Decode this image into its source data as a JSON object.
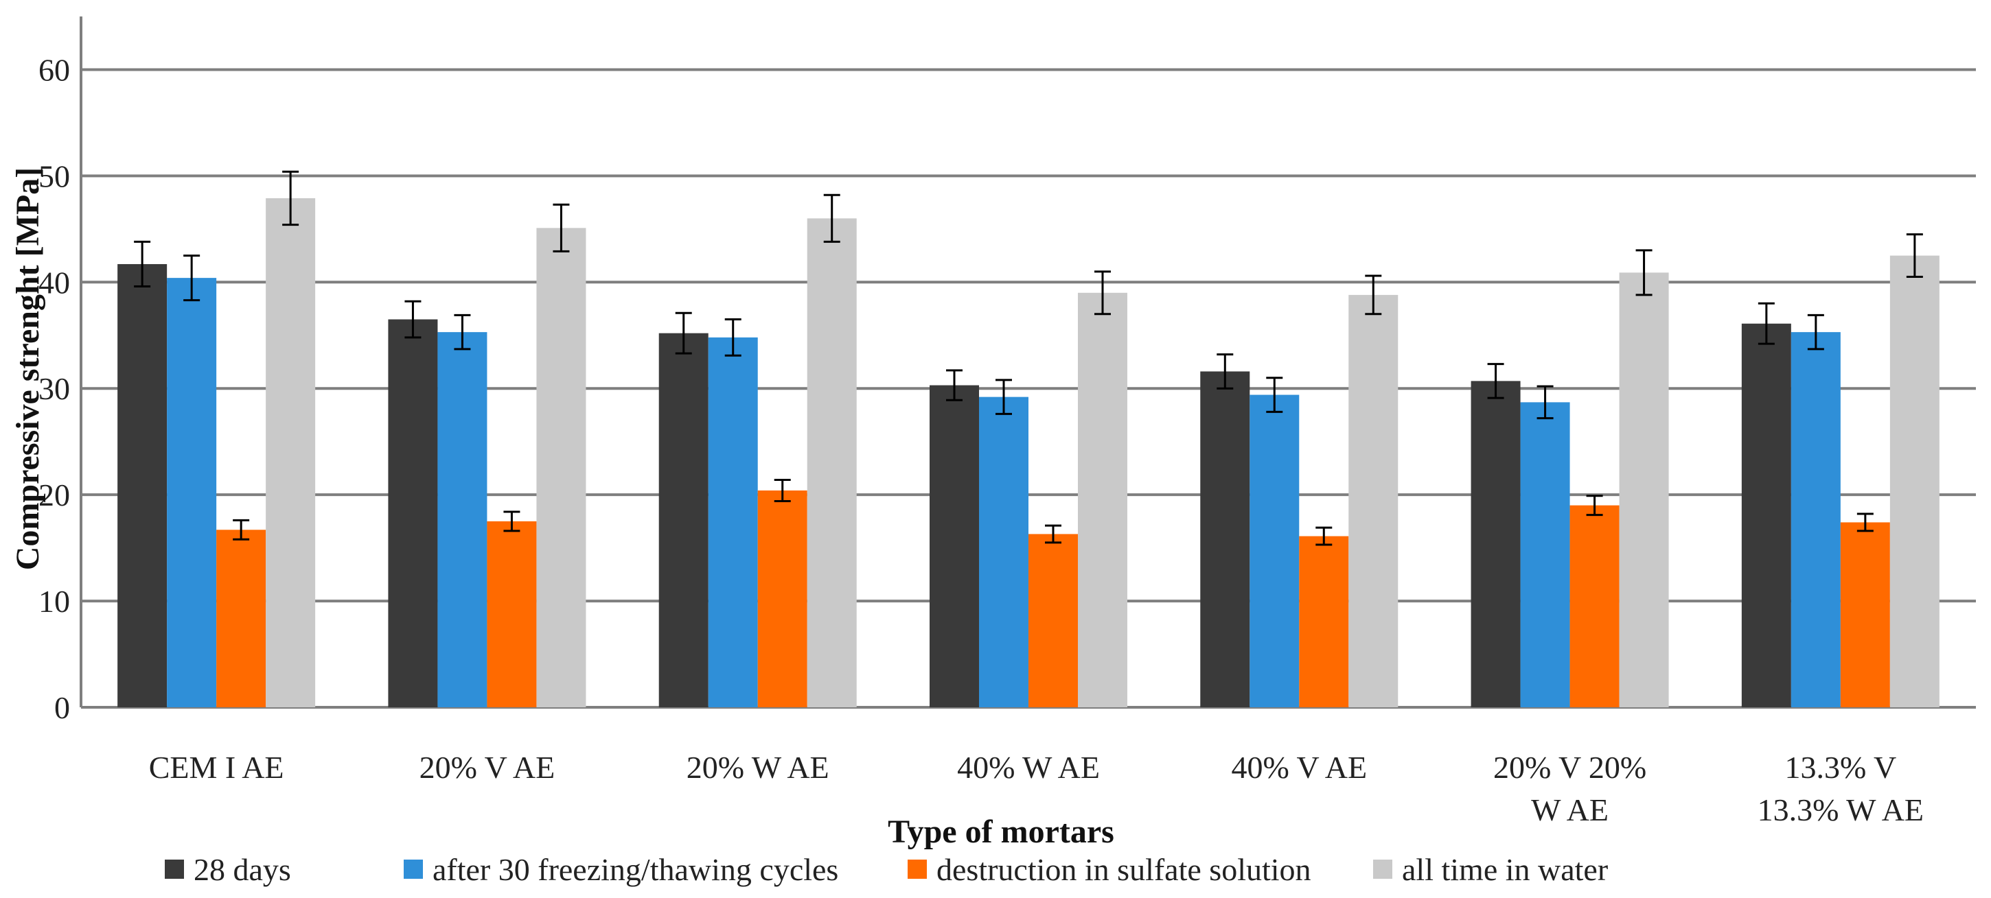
{
  "chart_data": {
    "type": "bar",
    "title": "",
    "xlabel": "Type of mortars",
    "ylabel": "Compressive strenght [MPa]",
    "ylim": [
      0,
      65
    ],
    "yticks": [
      0,
      10,
      20,
      30,
      40,
      50,
      60
    ],
    "ytick_labels": [
      "0",
      "10",
      "20",
      "30",
      "40",
      "50",
      "60"
    ],
    "grid": true,
    "legend_position": "bottom",
    "categories": [
      [
        "CEM I AE"
      ],
      [
        "20% V AE"
      ],
      [
        "20% W AE"
      ],
      [
        "40% W AE"
      ],
      [
        "40% V AE"
      ],
      [
        "20% V 20%",
        "W AE"
      ],
      [
        "13.3% V",
        "13.3% W AE"
      ]
    ],
    "series": [
      {
        "name": "28 days",
        "color": "#3a3a3a",
        "values": [
          41.7,
          36.5,
          35.2,
          30.3,
          31.6,
          30.7,
          36.1
        ],
        "errors": [
          2.1,
          1.7,
          1.9,
          1.4,
          1.6,
          1.6,
          1.9
        ]
      },
      {
        "name": "after 30 freezing/thawing cycles",
        "color": "#2f8fd8",
        "values": [
          40.4,
          35.3,
          34.8,
          29.2,
          29.4,
          28.7,
          35.3
        ],
        "errors": [
          2.1,
          1.6,
          1.7,
          1.6,
          1.6,
          1.5,
          1.6
        ]
      },
      {
        "name": "destruction in sulfate solution",
        "color": "#ff6a00",
        "values": [
          16.7,
          17.5,
          20.4,
          16.3,
          16.1,
          19.0,
          17.4
        ],
        "errors": [
          0.9,
          0.9,
          1.0,
          0.8,
          0.8,
          0.9,
          0.8
        ]
      },
      {
        "name": "all time in water",
        "color": "#c9c9c9",
        "values": [
          47.9,
          45.1,
          46.0,
          39.0,
          38.8,
          40.9,
          42.5
        ],
        "errors": [
          2.5,
          2.2,
          2.2,
          2.0,
          1.8,
          2.1,
          2.0
        ]
      }
    ]
  }
}
